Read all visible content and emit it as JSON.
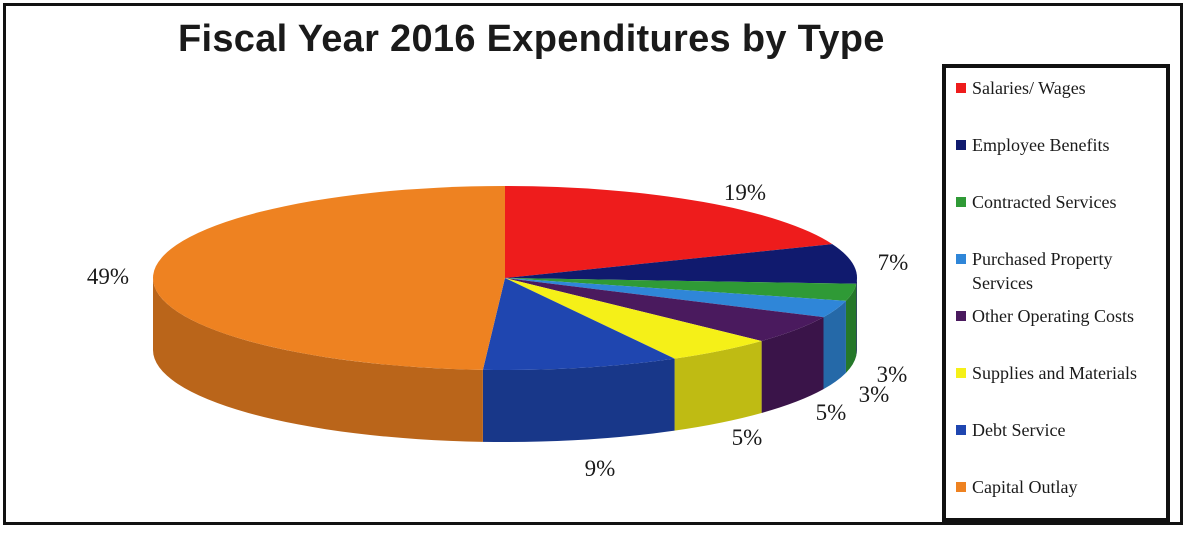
{
  "chart_data": {
    "type": "pie",
    "title": "Fiscal Year 2016 Expenditures by Type",
    "categories": [
      "Salaries/ Wages",
      "Employee Benefits",
      "Contracted Services",
      "Purchased Property Services",
      "Other Operating Costs",
      "Supplies and Materials",
      "Debt Service",
      "Capital Outlay"
    ],
    "values": [
      19,
      7,
      3,
      3,
      5,
      5,
      9,
      49
    ],
    "value_labels": [
      "19%",
      "7%",
      "3%",
      "3%",
      "5%",
      "5%",
      "9%",
      "49%"
    ],
    "colors": [
      "#ee1c1c",
      "#101a6e",
      "#2f9a36",
      "#2f86d8",
      "#4a1a5e",
      "#f5f018",
      "#1f46b0",
      "#ee8221"
    ],
    "legend_position": "right",
    "style": "3d"
  },
  "legend": {
    "items": [
      {
        "label": "Salaries/ Wages",
        "color": "#ee1c1c"
      },
      {
        "label": "Employee Benefits",
        "color": "#101a6e"
      },
      {
        "label": "Contracted Services",
        "color": "#2f9a36"
      },
      {
        "label": "Purchased Property Services",
        "color": "#2f86d8"
      },
      {
        "label": "Other Operating Costs",
        "color": "#4a1a5e"
      },
      {
        "label": "Supplies and Materials",
        "color": "#f5f018"
      },
      {
        "label": "Debt Service",
        "color": "#1f46b0"
      },
      {
        "label": "Capital Outlay",
        "color": "#ee8221"
      }
    ]
  }
}
